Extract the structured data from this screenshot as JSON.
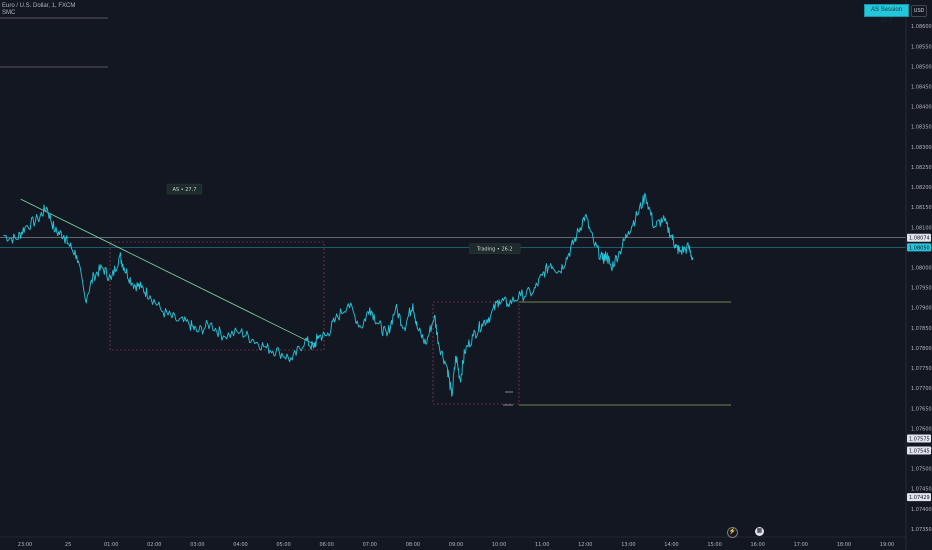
{
  "header": {
    "symbol": "Euro / U.S. Dollar, 1, FXCM",
    "indicator": "SMC"
  },
  "currency_button": "USD",
  "as_session_badge": "AS Session 27.7",
  "icons": {
    "flash": "flash-icon",
    "calendar": "calendar-icon"
  },
  "colors": {
    "background": "#131722",
    "price_line": "#26c6da",
    "trend_line": "#7ed6a8",
    "grid": "#1e222d",
    "range_box": "#b23c5a",
    "level_line": "#8fae5c"
  },
  "chart_data": {
    "type": "line",
    "x_ticks": [
      "23:00",
      "25",
      "01:00",
      "02:00",
      "03:00",
      "04:00",
      "05:00",
      "06:00",
      "07:00",
      "08:00",
      "09:00",
      "10:00",
      "11:00",
      "12:00",
      "13:00",
      "14:00",
      "15:00",
      "16:00",
      "17:00",
      "18:00",
      "19:00"
    ],
    "y_ticks": [
      "1.08600",
      "1.08550",
      "1.08500",
      "1.08450",
      "1.08400",
      "1.08350",
      "1.08300",
      "1.08250",
      "1.08200",
      "1.08150",
      "1.08100",
      "1.08050",
      "1.08000",
      "1.07950",
      "1.07900",
      "1.07850",
      "1.07800",
      "1.07750",
      "1.07700",
      "1.07650",
      "1.07600",
      "1.07550",
      "1.07500",
      "1.07450",
      "1.07400",
      "1.07350"
    ],
    "ylim": [
      1.0733,
      1.08665
    ],
    "xlim": [
      -0.5,
      20.3
    ],
    "series": [
      {
        "x": [
          -0.5,
          -0.2,
          0.0,
          0.3,
          0.5,
          0.7,
          0.9,
          1.0,
          1.2,
          1.4,
          1.6,
          1.8,
          2.0,
          2.2,
          2.3,
          2.5,
          2.7,
          2.9,
          3.2,
          3.5,
          3.8,
          4.0,
          4.3,
          4.6,
          5.0,
          5.3,
          5.6,
          5.9,
          6.2,
          6.5,
          6.7,
          6.8,
          7.0,
          7.2,
          7.5,
          7.8,
          8.0,
          8.2,
          8.4,
          8.6,
          8.8,
          9.0,
          9.1,
          9.3,
          9.5,
          9.6,
          9.8,
          9.9,
          10.0,
          10.1,
          10.2,
          10.4,
          10.6,
          10.8,
          11.0,
          11.2,
          11.5,
          11.8,
          12.0,
          12.2,
          12.4,
          12.6,
          12.8,
          13.0,
          13.2,
          13.4,
          13.5,
          13.6,
          13.8,
          14.0,
          14.2,
          14.4,
          14.6,
          14.8,
          15.0,
          15.1,
          15.2,
          15.4,
          15.5
        ],
        "y": [
          1.0808,
          1.0807,
          1.081,
          1.0812,
          1.0815,
          1.0809,
          1.0808,
          1.0806,
          1.0803,
          1.0792,
          1.0798,
          1.08,
          1.0797,
          1.0803,
          1.08,
          1.0796,
          1.0795,
          1.0793,
          1.0789,
          1.0787,
          1.0786,
          1.0784,
          1.0786,
          1.0783,
          1.0784,
          1.0782,
          1.078,
          1.0779,
          1.0777,
          1.0782,
          1.078,
          1.0783,
          1.0783,
          1.0787,
          1.0791,
          1.0785,
          1.079,
          1.0786,
          1.0783,
          1.079,
          1.0785,
          1.0791,
          1.0785,
          1.0781,
          1.0788,
          1.0781,
          1.0775,
          1.0768,
          1.0778,
          1.0772,
          1.0779,
          1.0783,
          1.0786,
          1.0788,
          1.0792,
          1.0791,
          1.0793,
          1.0794,
          1.0798,
          1.0801,
          1.0799,
          1.0803,
          1.0808,
          1.0813,
          1.0806,
          1.0802,
          1.0803,
          1.08,
          1.0804,
          1.0809,
          1.0813,
          1.0818,
          1.081,
          1.0812,
          1.0808,
          1.0805,
          1.0804,
          1.0805,
          1.0802
        ]
      }
    ],
    "trend_line": {
      "x": [
        -0.1,
        6.7
      ],
      "y": [
        1.0817,
        1.0781
      ]
    },
    "levels": [
      {
        "label": "1.08074",
        "y": 1.08074,
        "color": "#b2b5be"
      },
      {
        "label": "1.08050",
        "y": 1.0805,
        "color": "#26c6da"
      },
      {
        "label": "1.07575",
        "y": 1.07575,
        "color": "#b2b5be"
      },
      {
        "label": "1.07545",
        "y": 1.07545,
        "color": "#b2b5be"
      },
      {
        "label": "1.07429",
        "y": 1.07429,
        "color": "#b2b5be"
      }
    ],
    "annotations": [
      {
        "text": "AS • 27.7",
        "x": 3.7,
        "y": 1.08195
      },
      {
        "text": "Trading • 26.2",
        "x": 10.9,
        "y": 1.08047
      }
    ],
    "grid": false,
    "legend": "none"
  }
}
